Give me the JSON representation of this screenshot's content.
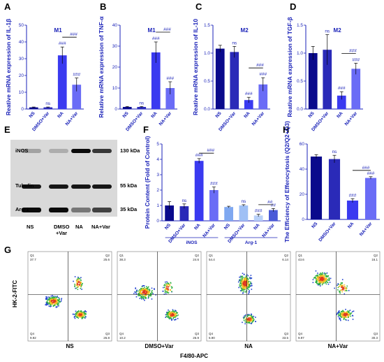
{
  "colors": {
    "ns": "#0a0a8c",
    "dmso": "#2a2ab8",
    "na": "#3a3af0",
    "navar": "#6a6cf6",
    "accent": "#1a22b8"
  },
  "panels": {
    "A": {
      "letter": "A",
      "title": "M1",
      "ylabel": "Reative mRNA expression of IL-1β"
    },
    "B": {
      "letter": "B",
      "title": "M1",
      "ylabel": "Relative mRNA expression of TNF-α"
    },
    "C": {
      "letter": "C",
      "title": "M2",
      "ylabel": "Reative mRNA expression of IL-10"
    },
    "D": {
      "letter": "D",
      "title": "M2",
      "ylabel": "Reative mRNA expression of TGF-β"
    },
    "E": {
      "letter": "E",
      "bands": [
        "iNOS",
        "Tubulin",
        "Arg-1"
      ],
      "kda": [
        "130 kDa",
        "55 kDa",
        "35 kDa"
      ],
      "lanes": [
        "NS",
        "DMSO\n+Var",
        "NA",
        "NA+Var"
      ]
    },
    "F": {
      "letter": "F",
      "ylabel": "Protein Content (Fold of Control)",
      "groups": [
        "iNOS",
        "Arg-1"
      ]
    },
    "G": {
      "letter": "G",
      "ylabel": "HK-2-FITC",
      "xlabel": "F4/80-APC"
    },
    "H": {
      "letter": "H",
      "ylabel": "The Efficiency of Efferocytosis (Q2/Q2+Q3)"
    }
  },
  "chart_data": [
    {
      "id": "A",
      "type": "bar",
      "title": "M1",
      "ylabel": "Reative mRNA expression of IL-1β",
      "categories": [
        "NS",
        "DMSO+Var",
        "NA",
        "NA+Var"
      ],
      "values": [
        1,
        1,
        32,
        14.5
      ],
      "errors": [
        0.2,
        0.2,
        5,
        4
      ],
      "ylim": [
        0,
        50
      ],
      "yticks": [
        0,
        10,
        20,
        30,
        40,
        50
      ],
      "annotations": [
        "",
        "ns",
        "###",
        "###"
      ],
      "bracket": "###"
    },
    {
      "id": "B",
      "type": "bar",
      "title": "M1",
      "ylabel": "Relative mRNA expression of TNF-α",
      "categories": [
        "NS",
        "DMSO+Var",
        "NA",
        "NA+Var"
      ],
      "values": [
        1,
        1,
        27,
        10
      ],
      "errors": [
        0.2,
        0.2,
        5,
        3
      ],
      "ylim": [
        0,
        40
      ],
      "yticks": [
        0,
        10,
        20,
        30,
        40
      ],
      "annotations": [
        "",
        "ns",
        "###",
        "###"
      ],
      "bracket": "###"
    },
    {
      "id": "C",
      "type": "bar",
      "title": "M2",
      "ylabel": "Reative mRNA expression of IL-10",
      "categories": [
        "NS",
        "DMSO+Var",
        "NA",
        "NA+Var"
      ],
      "values": [
        1.08,
        1.02,
        0.16,
        0.44
      ],
      "errors": [
        0.06,
        0.1,
        0.05,
        0.12
      ],
      "ylim": [
        0,
        1.5
      ],
      "yticks": [
        0.0,
        0.5,
        1.0,
        1.5
      ],
      "annotations": [
        "",
        "ns",
        "###",
        "###"
      ],
      "bracket": "###"
    },
    {
      "id": "D",
      "type": "bar",
      "title": "M2",
      "ylabel": "Reative mRNA expression of TGF-β",
      "categories": [
        "NS",
        "DMSO+Var",
        "NA",
        "NA+Var"
      ],
      "values": [
        1.0,
        1.06,
        0.24,
        0.72
      ],
      "errors": [
        0.12,
        0.27,
        0.07,
        0.1
      ],
      "ylim": [
        0,
        1.5
      ],
      "yticks": [
        0.0,
        0.5,
        1.0,
        1.5
      ],
      "annotations": [
        "",
        "ns",
        "###",
        "###"
      ],
      "bracket": "###"
    },
    {
      "id": "F",
      "type": "bar",
      "ylabel": "Protein Content (Fold of Control)",
      "categories": [
        "NS",
        "DMSO+Var",
        "NA",
        "NA+Var",
        "NS",
        "DMSO+Var",
        "NA",
        "NA+Var"
      ],
      "groups": [
        "iNOS",
        "Arg-1"
      ],
      "values": [
        1.0,
        0.95,
        3.9,
        2.0,
        0.9,
        1.0,
        0.35,
        0.7
      ],
      "errors": [
        0.25,
        0.15,
        0.15,
        0.2,
        0.05,
        0.05,
        0.08,
        0.1
      ],
      "ylim": [
        0,
        5
      ],
      "yticks": [
        0,
        1,
        2,
        3,
        4,
        5
      ],
      "annotations": [
        "",
        "ns",
        "###",
        "###",
        "",
        "ns",
        "###",
        "##"
      ],
      "brackets": [
        "###",
        "##"
      ]
    },
    {
      "id": "H",
      "type": "bar",
      "ylabel": "The Efficiency of Efferocytosis (Q2/Q2+Q3)",
      "categories": [
        "NS",
        "DMSO+Var",
        "NA",
        "NA+Var"
      ],
      "values": [
        50,
        48,
        15,
        33
      ],
      "errors": [
        1.5,
        3,
        1.5,
        1
      ],
      "ylim": [
        0,
        60
      ],
      "yticks": [
        0,
        20,
        40,
        60
      ],
      "annotations": [
        "",
        "ns",
        "###",
        "###"
      ],
      "bracket": "###"
    },
    {
      "id": "G",
      "type": "scatter",
      "ylabel": "HK-2-FITC",
      "xlabel": "F4/80-APC",
      "plots": [
        {
          "name": "NS",
          "q1": "37.7",
          "q2": "25.6",
          "q3": "26.8",
          "q4": "9.92"
        },
        {
          "name": "DMSO+Var",
          "q1": "38.3",
          "q2": "24.6",
          "q3": "26.9",
          "q4": "10.2"
        },
        {
          "name": "NA",
          "q1": "54.4",
          "q2": "6.14",
          "q3": "33.5",
          "q4": "5.90"
        },
        {
          "name": "NA+Var",
          "q1": "43.6",
          "q2": "16.1",
          "q3": "30.3",
          "q4": "9.97"
        }
      ]
    }
  ]
}
